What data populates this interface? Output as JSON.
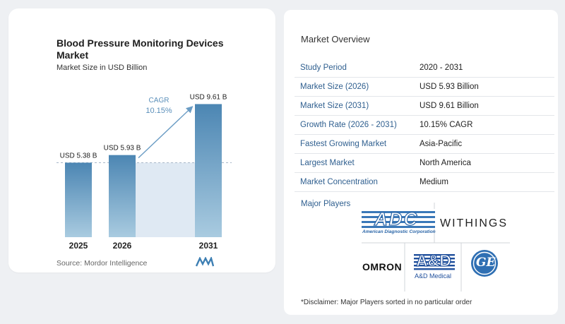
{
  "chart_data": {
    "type": "bar",
    "title": "Blood Pressure Monitoring Devices Market",
    "subtitle": "Market Size in USD Billion",
    "categories": [
      "2025",
      "2026",
      "2031"
    ],
    "values": [
      5.38,
      5.93,
      9.61
    ],
    "data_labels": [
      "USD 5.38 B",
      "USD 5.93 B",
      "USD 9.61 B"
    ],
    "cagr_label": "CAGR",
    "cagr_value": "10.15%",
    "ylim": [
      0,
      10.5
    ],
    "grid": false,
    "colors": {
      "bar": "#5f95bd",
      "bar_top": "#4c86b3",
      "bar_bottom": "#a9cbe0",
      "band": "#dfe9f3",
      "dashed": "#a8b8c8",
      "arrow": "#6a9cc4",
      "cagr_text": "#5a8fba"
    }
  },
  "source": "Source:  Mordor Intelligence",
  "overview": {
    "title": "Market Overview",
    "rows": [
      {
        "key": "Study Period",
        "value": "2020 - 2031"
      },
      {
        "key": "Market Size (2026)",
        "value": "USD 5.93 Billion"
      },
      {
        "key": "Market Size (2031)",
        "value": "USD 9.61 Billion"
      },
      {
        "key": "Growth Rate (2026 - 2031)",
        "value": "10.15% CAGR"
      },
      {
        "key": "Fastest Growing Market",
        "value": "Asia-Pacific"
      },
      {
        "key": "Largest Market",
        "value": "North America"
      },
      {
        "key": "Market Concentration",
        "value": "Medium"
      }
    ],
    "players_label": "Major Players",
    "players": {
      "adc": "ADC",
      "adc_sub": "American Diagnostic Corporation",
      "withings": "WITHINGS",
      "omron": "OMRON",
      "and": "A&D",
      "and_sub": "A&D Medical",
      "ge": "GE"
    },
    "disclaimer": "*Disclaimer: Major Players sorted in no particular order"
  }
}
